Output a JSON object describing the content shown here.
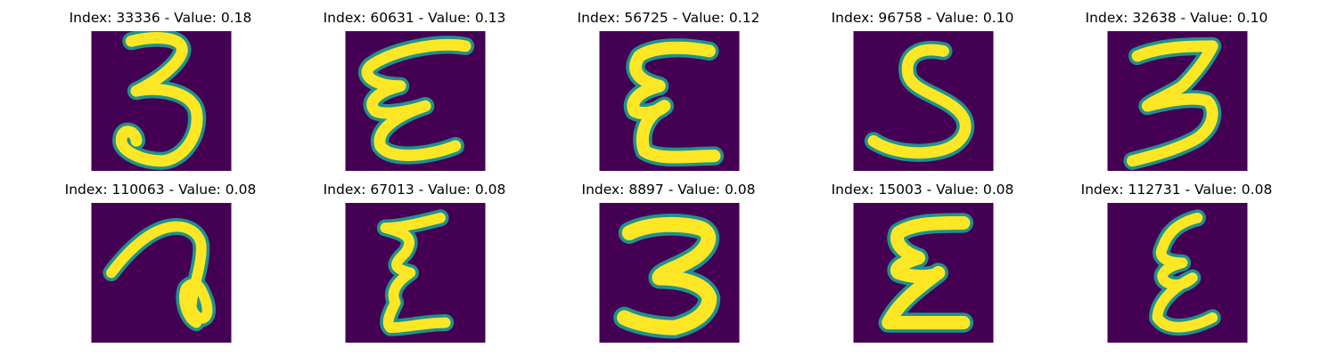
{
  "colors": {
    "background": "#440154",
    "stroke_edge": "#21918c",
    "stroke_mid": "#5ec962",
    "stroke_core": "#fde725"
  },
  "panels": [
    {
      "index": 33336,
      "value": 0.18,
      "title": "Index: 33336 - Value: 0.18"
    },
    {
      "index": 60631,
      "value": 0.13,
      "title": "Index: 60631 - Value: 0.13"
    },
    {
      "index": 56725,
      "value": 0.12,
      "title": "Index: 56725 - Value: 0.12"
    },
    {
      "index": 96758,
      "value": 0.1,
      "title": "Index: 96758 - Value: 0.10"
    },
    {
      "index": 32638,
      "value": 0.1,
      "title": "Index: 32638 - Value: 0.10"
    },
    {
      "index": 110063,
      "value": 0.08,
      "title": "Index: 110063 - Value: 0.08"
    },
    {
      "index": 67013,
      "value": 0.08,
      "title": "Index: 67013 - Value: 0.08"
    },
    {
      "index": 8897,
      "value": 0.08,
      "title": "Index: 8897 - Value: 0.08"
    },
    {
      "index": 15003,
      "value": 0.08,
      "title": "Index: 15003 - Value: 0.08"
    },
    {
      "index": 112731,
      "value": 0.08,
      "title": "Index: 112731 - Value: 0.08"
    }
  ]
}
